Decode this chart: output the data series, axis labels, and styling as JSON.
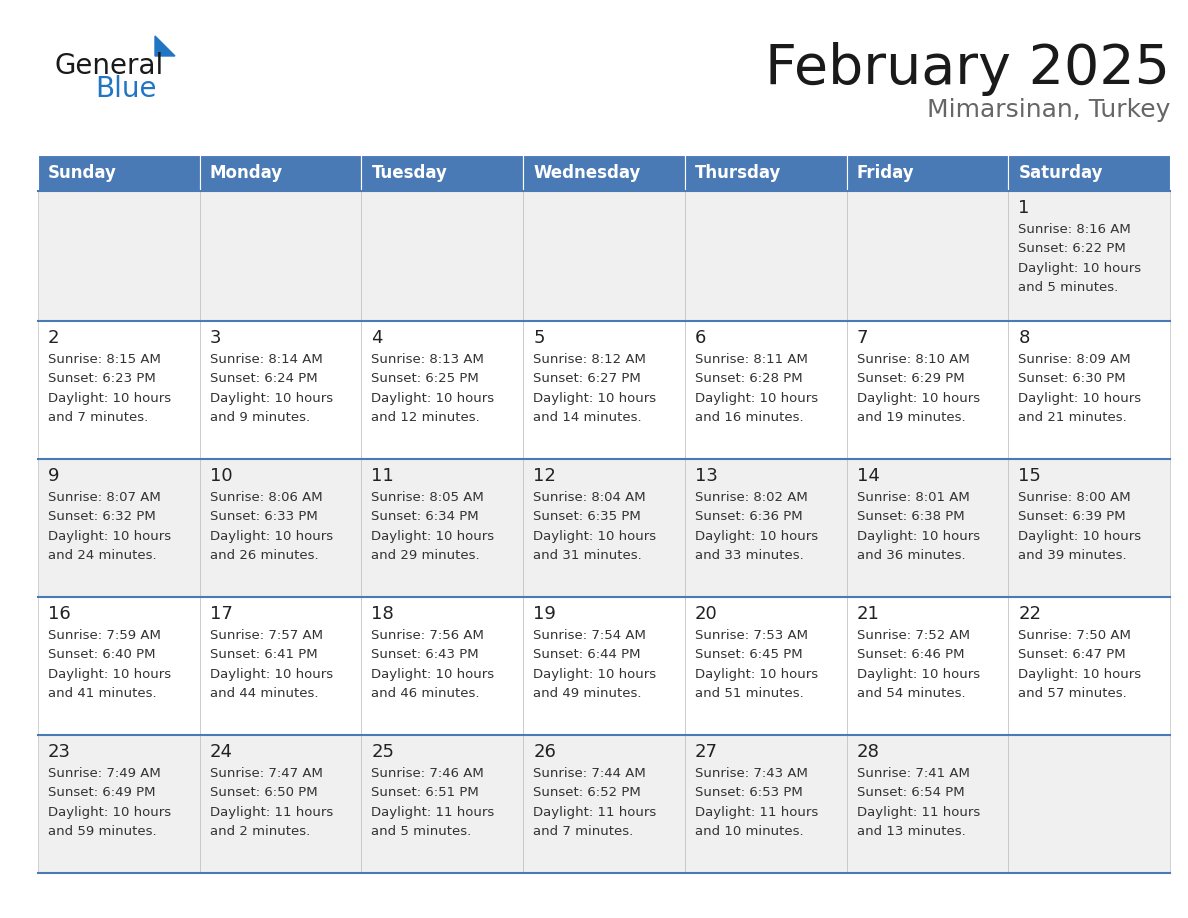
{
  "title": "February 2025",
  "subtitle": "Mimarsinan, Turkey",
  "days_of_week": [
    "Sunday",
    "Monday",
    "Tuesday",
    "Wednesday",
    "Thursday",
    "Friday",
    "Saturday"
  ],
  "header_bg": "#4a7ab5",
  "header_text": "#FFFFFF",
  "row_bg_1": "#f0f0f0",
  "row_bg_2": "#ffffff",
  "cell_border_color": "#c0c0c0",
  "row_border_color": "#4a7ab5",
  "day_number_color": "#222222",
  "text_color": "#333333",
  "logo_general_color": "#1a1a1a",
  "logo_blue_color": "#2176C4",
  "calendar_data": [
    [
      null,
      null,
      null,
      null,
      null,
      null,
      {
        "day": "1",
        "sunrise": "8:16 AM",
        "sunset": "6:22 PM",
        "daylight_line1": "Daylight: 10 hours",
        "daylight_line2": "and 5 minutes."
      }
    ],
    [
      {
        "day": "2",
        "sunrise": "8:15 AM",
        "sunset": "6:23 PM",
        "daylight_line1": "Daylight: 10 hours",
        "daylight_line2": "and 7 minutes."
      },
      {
        "day": "3",
        "sunrise": "8:14 AM",
        "sunset": "6:24 PM",
        "daylight_line1": "Daylight: 10 hours",
        "daylight_line2": "and 9 minutes."
      },
      {
        "day": "4",
        "sunrise": "8:13 AM",
        "sunset": "6:25 PM",
        "daylight_line1": "Daylight: 10 hours",
        "daylight_line2": "and 12 minutes."
      },
      {
        "day": "5",
        "sunrise": "8:12 AM",
        "sunset": "6:27 PM",
        "daylight_line1": "Daylight: 10 hours",
        "daylight_line2": "and 14 minutes."
      },
      {
        "day": "6",
        "sunrise": "8:11 AM",
        "sunset": "6:28 PM",
        "daylight_line1": "Daylight: 10 hours",
        "daylight_line2": "and 16 minutes."
      },
      {
        "day": "7",
        "sunrise": "8:10 AM",
        "sunset": "6:29 PM",
        "daylight_line1": "Daylight: 10 hours",
        "daylight_line2": "and 19 minutes."
      },
      {
        "day": "8",
        "sunrise": "8:09 AM",
        "sunset": "6:30 PM",
        "daylight_line1": "Daylight: 10 hours",
        "daylight_line2": "and 21 minutes."
      }
    ],
    [
      {
        "day": "9",
        "sunrise": "8:07 AM",
        "sunset": "6:32 PM",
        "daylight_line1": "Daylight: 10 hours",
        "daylight_line2": "and 24 minutes."
      },
      {
        "day": "10",
        "sunrise": "8:06 AM",
        "sunset": "6:33 PM",
        "daylight_line1": "Daylight: 10 hours",
        "daylight_line2": "and 26 minutes."
      },
      {
        "day": "11",
        "sunrise": "8:05 AM",
        "sunset": "6:34 PM",
        "daylight_line1": "Daylight: 10 hours",
        "daylight_line2": "and 29 minutes."
      },
      {
        "day": "12",
        "sunrise": "8:04 AM",
        "sunset": "6:35 PM",
        "daylight_line1": "Daylight: 10 hours",
        "daylight_line2": "and 31 minutes."
      },
      {
        "day": "13",
        "sunrise": "8:02 AM",
        "sunset": "6:36 PM",
        "daylight_line1": "Daylight: 10 hours",
        "daylight_line2": "and 33 minutes."
      },
      {
        "day": "14",
        "sunrise": "8:01 AM",
        "sunset": "6:38 PM",
        "daylight_line1": "Daylight: 10 hours",
        "daylight_line2": "and 36 minutes."
      },
      {
        "day": "15",
        "sunrise": "8:00 AM",
        "sunset": "6:39 PM",
        "daylight_line1": "Daylight: 10 hours",
        "daylight_line2": "and 39 minutes."
      }
    ],
    [
      {
        "day": "16",
        "sunrise": "7:59 AM",
        "sunset": "6:40 PM",
        "daylight_line1": "Daylight: 10 hours",
        "daylight_line2": "and 41 minutes."
      },
      {
        "day": "17",
        "sunrise": "7:57 AM",
        "sunset": "6:41 PM",
        "daylight_line1": "Daylight: 10 hours",
        "daylight_line2": "and 44 minutes."
      },
      {
        "day": "18",
        "sunrise": "7:56 AM",
        "sunset": "6:43 PM",
        "daylight_line1": "Daylight: 10 hours",
        "daylight_line2": "and 46 minutes."
      },
      {
        "day": "19",
        "sunrise": "7:54 AM",
        "sunset": "6:44 PM",
        "daylight_line1": "Daylight: 10 hours",
        "daylight_line2": "and 49 minutes."
      },
      {
        "day": "20",
        "sunrise": "7:53 AM",
        "sunset": "6:45 PM",
        "daylight_line1": "Daylight: 10 hours",
        "daylight_line2": "and 51 minutes."
      },
      {
        "day": "21",
        "sunrise": "7:52 AM",
        "sunset": "6:46 PM",
        "daylight_line1": "Daylight: 10 hours",
        "daylight_line2": "and 54 minutes."
      },
      {
        "day": "22",
        "sunrise": "7:50 AM",
        "sunset": "6:47 PM",
        "daylight_line1": "Daylight: 10 hours",
        "daylight_line2": "and 57 minutes."
      }
    ],
    [
      {
        "day": "23",
        "sunrise": "7:49 AM",
        "sunset": "6:49 PM",
        "daylight_line1": "Daylight: 10 hours",
        "daylight_line2": "and 59 minutes."
      },
      {
        "day": "24",
        "sunrise": "7:47 AM",
        "sunset": "6:50 PM",
        "daylight_line1": "Daylight: 11 hours",
        "daylight_line2": "and 2 minutes."
      },
      {
        "day": "25",
        "sunrise": "7:46 AM",
        "sunset": "6:51 PM",
        "daylight_line1": "Daylight: 11 hours",
        "daylight_line2": "and 5 minutes."
      },
      {
        "day": "26",
        "sunrise": "7:44 AM",
        "sunset": "6:52 PM",
        "daylight_line1": "Daylight: 11 hours",
        "daylight_line2": "and 7 minutes."
      },
      {
        "day": "27",
        "sunrise": "7:43 AM",
        "sunset": "6:53 PM",
        "daylight_line1": "Daylight: 11 hours",
        "daylight_line2": "and 10 minutes."
      },
      {
        "day": "28",
        "sunrise": "7:41 AM",
        "sunset": "6:54 PM",
        "daylight_line1": "Daylight: 11 hours",
        "daylight_line2": "and 13 minutes."
      },
      null
    ]
  ],
  "figsize": [
    11.88,
    9.18
  ],
  "dpi": 100
}
